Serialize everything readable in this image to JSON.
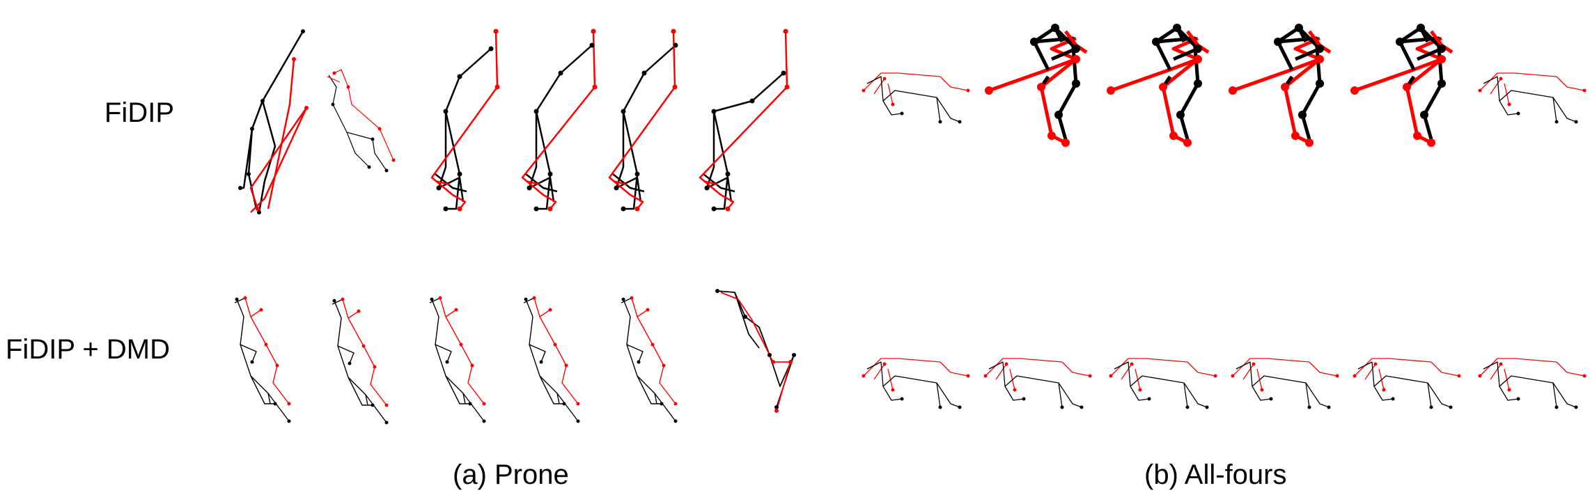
{
  "rows": {
    "fidip": "FiDIP",
    "fidip_dmd": "FiDIP + DMD"
  },
  "captions": {
    "prone": "(a) Prone",
    "all_fours": "(b) All-fours"
  },
  "colors": {
    "background": "#ffffff",
    "left_limb": "#000000",
    "right_limb": "#ff0000"
  }
}
